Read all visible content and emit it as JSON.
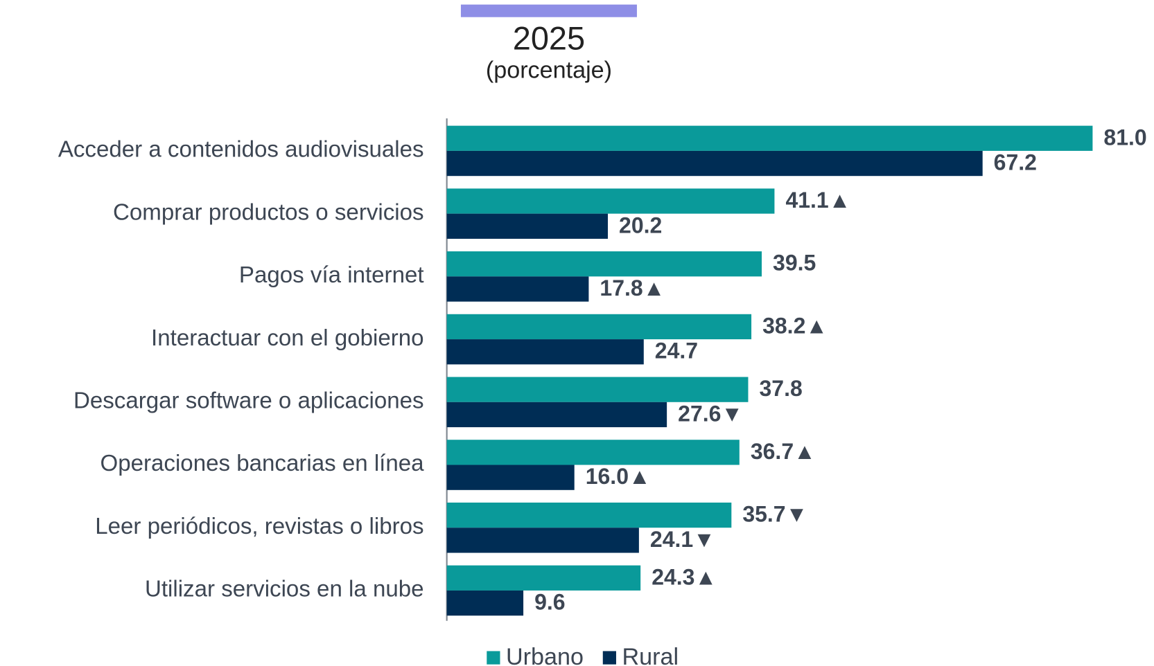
{
  "chart_data": {
    "type": "bar",
    "orientation": "horizontal",
    "title": "2025",
    "subtitle": "(porcentaje)",
    "categories": [
      "Acceder a contenidos audiovisuales",
      "Comprar productos o servicios",
      "Pagos vía internet",
      "Interactuar con el gobierno",
      "Descargar software o aplicaciones",
      "Operaciones bancarias en línea",
      "Leer periódicos, revistas o libros",
      "Utilizar servicios en la nube"
    ],
    "series": [
      {
        "name": "Urbano",
        "color": "#0a9a9a",
        "values": [
          81.0,
          41.1,
          39.5,
          38.2,
          37.8,
          36.7,
          35.7,
          24.3
        ],
        "value_labels": [
          "81.0",
          "41.1▲",
          "39.5",
          "38.2▲",
          "37.8",
          "36.7▲",
          "35.7▼",
          "24.3▲"
        ]
      },
      {
        "name": "Rural",
        "color": "#002d55",
        "values": [
          67.2,
          20.2,
          17.8,
          24.7,
          27.6,
          16.0,
          24.1,
          9.6
        ],
        "value_labels": [
          "67.2",
          "20.2",
          "17.8▲",
          "24.7",
          "27.6▼",
          "16.0▲",
          "24.1▼",
          "9.6"
        ]
      }
    ],
    "xlim": [
      0,
      81
    ],
    "legend": "bottom"
  }
}
